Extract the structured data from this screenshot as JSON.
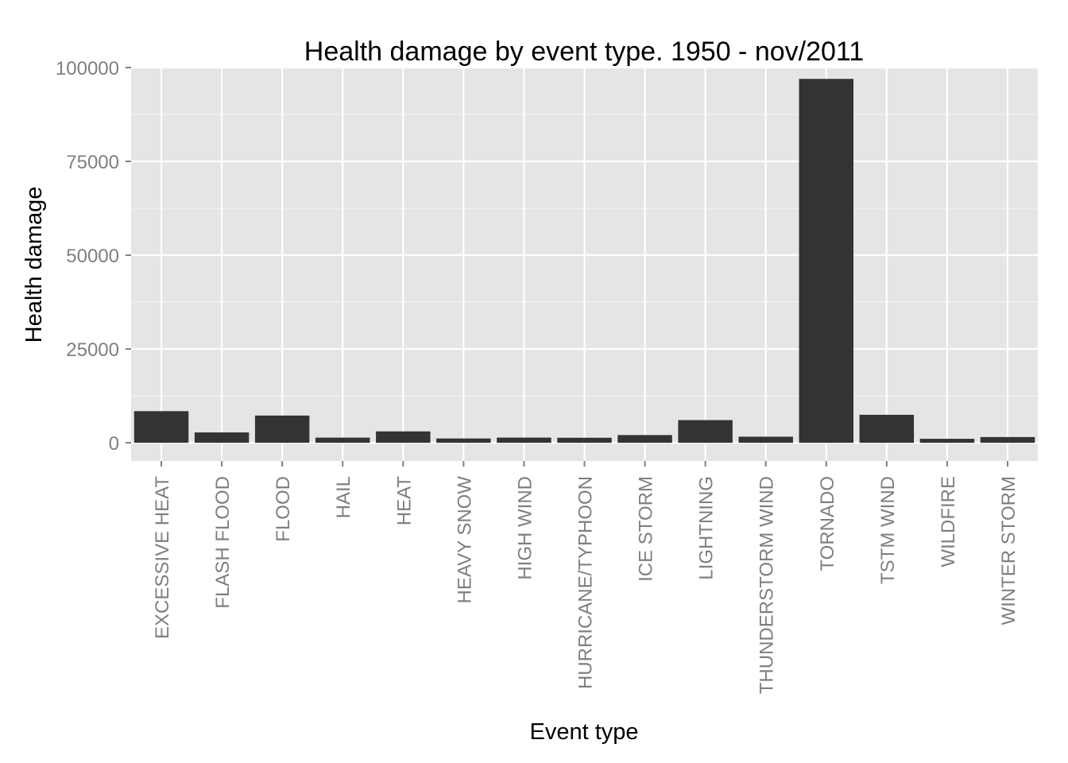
{
  "chart_data": {
    "type": "bar",
    "title": "Health damage by event type. 1950 - nov/2011",
    "xlabel": "Event type",
    "ylabel": "Health damage",
    "categories": [
      "EXCESSIVE HEAT",
      "FLASH FLOOD",
      "FLOOD",
      "HAIL",
      "HEAT",
      "HEAVY SNOW",
      "HIGH WIND",
      "HURRICANE/TYPHOON",
      "ICE STORM",
      "LIGHTNING",
      "THUNDERSTORM WIND",
      "TORNADO",
      "TSTM WIND",
      "WILDFIRE",
      "WINTER STORM"
    ],
    "values": [
      8428,
      2755,
      7259,
      1376,
      3037,
      1148,
      1385,
      1339,
      2064,
      6046,
      1621,
      96979,
      7461,
      1061,
      1527
    ],
    "ylim": [
      -4849,
      100000
    ],
    "yticks": [
      0,
      25000,
      50000,
      75000,
      100000
    ],
    "grid": true,
    "colors": {
      "panel_background": "#e5e5e5",
      "grid_line": "#ffffff",
      "bar_fill": "#333333",
      "tick_label": "#7f7f7f",
      "tick_mark": "#7f7f7f"
    }
  }
}
